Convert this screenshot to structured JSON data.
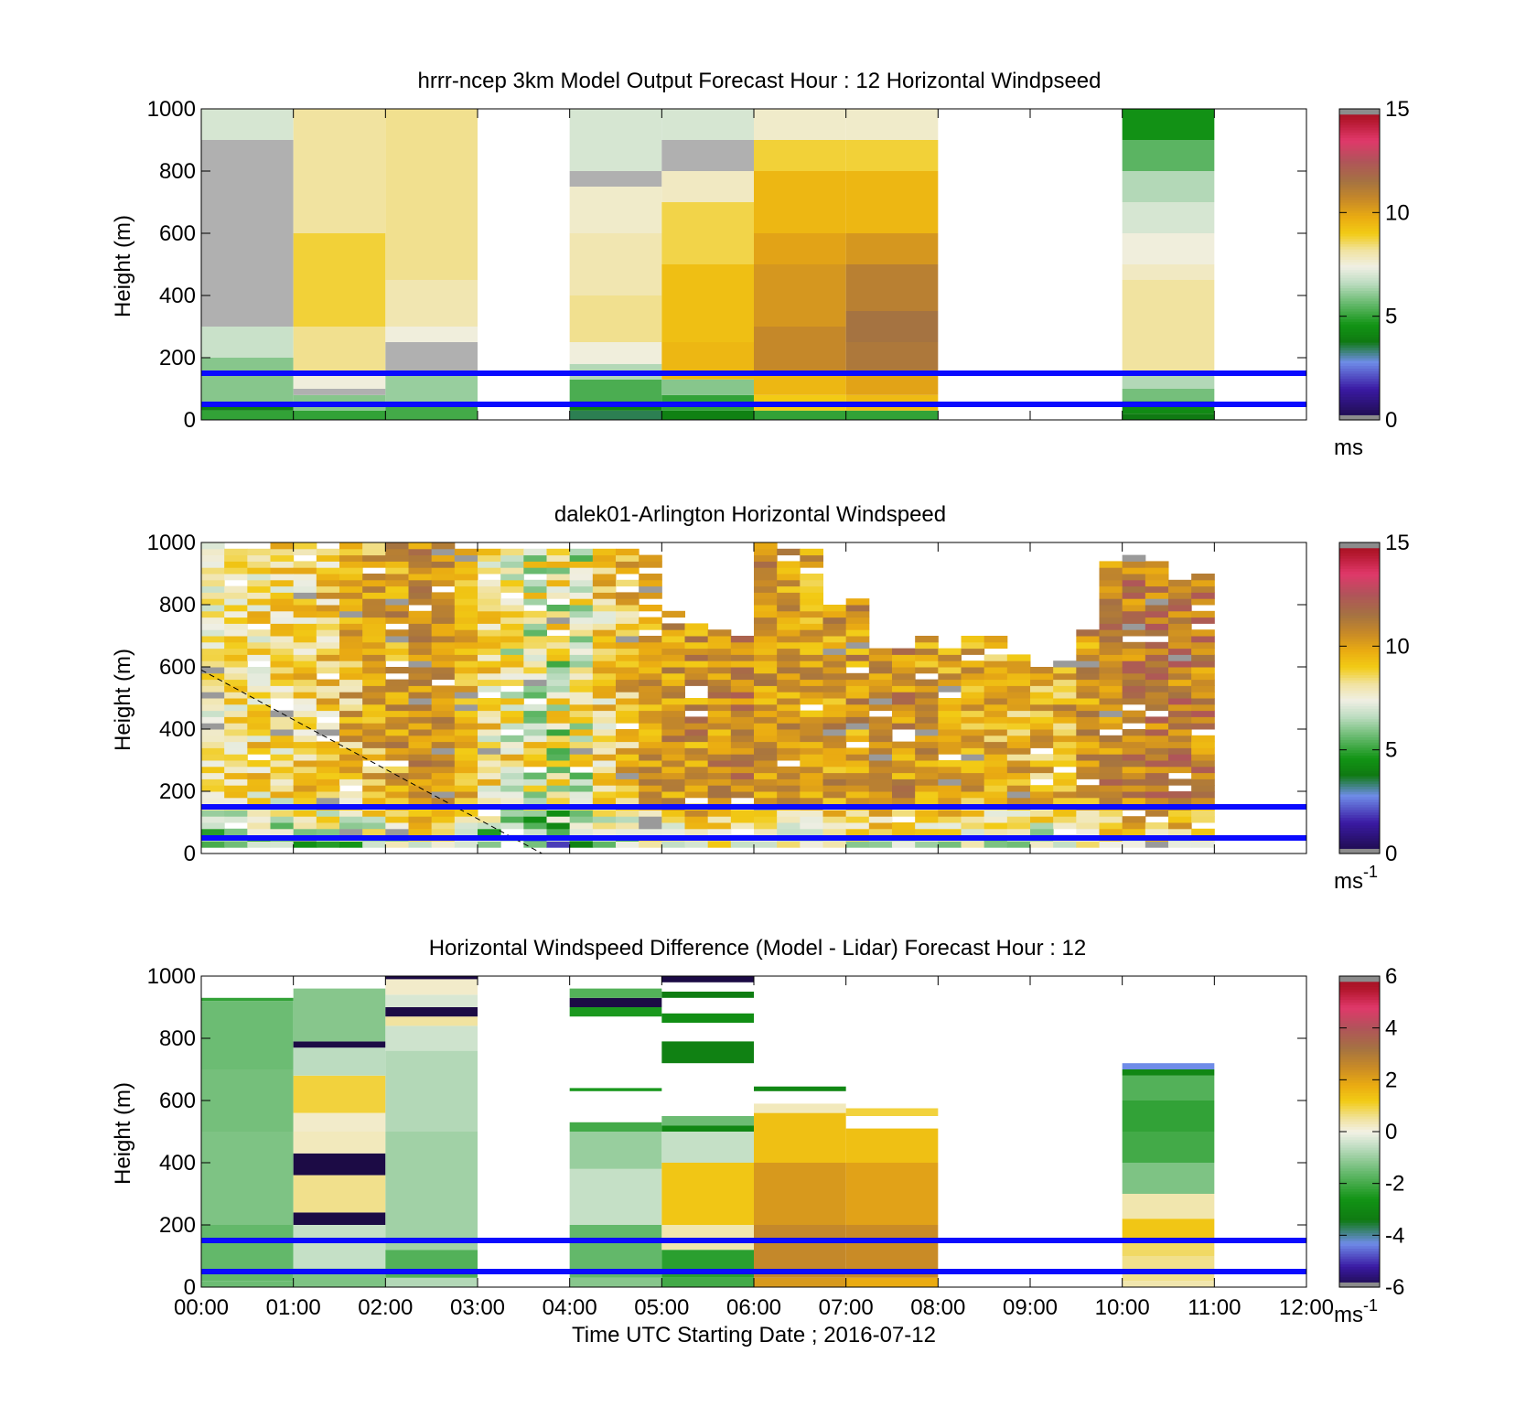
{
  "figure": {
    "x_label": "Time UTC  Starting Date ; 2016-07-12"
  },
  "chart_data": [
    {
      "type": "heatmap",
      "id": "model",
      "title": "hrrr-ncep 3km Model Output   Forecast Hour : 12 Horizontal Windpseed",
      "ylabel": "Height (m)",
      "ylim": [
        0,
        1000
      ],
      "yticks": [
        0,
        200,
        400,
        600,
        800,
        1000
      ],
      "xlim": [
        0,
        12
      ],
      "xtick_labels": [
        "00:00",
        "01:00",
        "02:00",
        "03:00",
        "04:00",
        "05:00",
        "06:00",
        "07:00",
        "08:00",
        "09:00",
        "10:00",
        "11:00",
        "12:00"
      ],
      "show_xtick_labels": false,
      "reference_lines_m": [
        50,
        150
      ],
      "colorbar": {
        "min": 0,
        "max": 15,
        "ticks": [
          0,
          5,
          10,
          15
        ],
        "unit_label": "ms",
        "unit_superscript": ""
      },
      "columns": [
        {
          "t0": 0,
          "t1": 1,
          "cells": [
            [
              0,
              30,
              5
            ],
            [
              30,
              50,
              4
            ],
            [
              50,
              200,
              6
            ],
            [
              200,
              300,
              6.8
            ],
            [
              300,
              900,
              -99
            ],
            [
              900,
              1000,
              7
            ]
          ]
        },
        {
          "t0": 1,
          "t1": 2,
          "cells": [
            [
              0,
              30,
              5
            ],
            [
              30,
              80,
              6
            ],
            [
              80,
              100,
              -99
            ],
            [
              100,
              150,
              7.5
            ],
            [
              150,
              300,
              8.3
            ],
            [
              300,
              600,
              8.8
            ],
            [
              600,
              1000,
              8.2
            ]
          ]
        },
        {
          "t0": 2,
          "t1": 3,
          "cells": [
            [
              0,
              50,
              5.2
            ],
            [
              50,
              150,
              6.2
            ],
            [
              150,
              250,
              -99
            ],
            [
              250,
              300,
              7.5
            ],
            [
              300,
              450,
              8
            ],
            [
              450,
              1000,
              8.3
            ]
          ]
        },
        {
          "t0": 4,
          "t1": 5,
          "cells": [
            [
              0,
              30,
              3.5
            ],
            [
              30,
              60,
              4
            ],
            [
              60,
              130,
              5.3
            ],
            [
              130,
              180,
              6.5
            ],
            [
              180,
              250,
              7.5
            ],
            [
              250,
              400,
              8.3
            ],
            [
              400,
              600,
              8
            ],
            [
              600,
              750,
              7.7
            ],
            [
              750,
              800,
              -99
            ],
            [
              800,
              1000,
              7
            ]
          ]
        },
        {
          "t0": 5,
          "t1": 6,
          "cells": [
            [
              0,
              30,
              4
            ],
            [
              30,
              80,
              5
            ],
            [
              80,
              130,
              6
            ],
            [
              130,
              250,
              9.5
            ],
            [
              250,
              500,
              9.3
            ],
            [
              500,
              700,
              8.7
            ],
            [
              700,
              800,
              7.8
            ],
            [
              800,
              900,
              -99
            ],
            [
              900,
              1000,
              7
            ]
          ]
        },
        {
          "t0": 6,
          "t1": 7,
          "cells": [
            [
              0,
              30,
              5
            ],
            [
              30,
              80,
              9
            ],
            [
              80,
              150,
              9.5
            ],
            [
              150,
              300,
              10.7
            ],
            [
              300,
              500,
              10.3
            ],
            [
              500,
              600,
              10
            ],
            [
              600,
              800,
              9.5
            ],
            [
              800,
              900,
              8.8
            ],
            [
              900,
              1000,
              7.7
            ]
          ]
        },
        {
          "t0": 7,
          "t1": 8,
          "cells": [
            [
              0,
              30,
              5
            ],
            [
              30,
              80,
              9.4
            ],
            [
              80,
              150,
              10
            ],
            [
              150,
              250,
              11.3
            ],
            [
              250,
              350,
              11.5
            ],
            [
              350,
              500,
              11
            ],
            [
              500,
              600,
              10.3
            ],
            [
              600,
              800,
              9.5
            ],
            [
              800,
              900,
              8.8
            ],
            [
              900,
              1000,
              7.7
            ]
          ]
        },
        {
          "t0": 10,
          "t1": 11,
          "cells": [
            [
              0,
              20,
              3.8
            ],
            [
              20,
              60,
              4.3
            ],
            [
              60,
              100,
              5.8
            ],
            [
              100,
              150,
              6.5
            ],
            [
              150,
              450,
              8.2
            ],
            [
              450,
              500,
              7.8
            ],
            [
              500,
              600,
              7.5
            ],
            [
              600,
              700,
              7
            ],
            [
              700,
              800,
              6.5
            ],
            [
              800,
              900,
              5.5
            ],
            [
              900,
              1000,
              4.5
            ]
          ]
        }
      ]
    },
    {
      "type": "heatmap",
      "id": "lidar",
      "title": "dalek01-Arlington  Horizontal Windspeed",
      "ylabel": "Height (m)",
      "ylim": [
        0,
        1000
      ],
      "yticks": [
        0,
        200,
        400,
        600,
        800,
        1000
      ],
      "xlim": [
        0,
        12
      ],
      "xtick_labels": [
        "00:00",
        "01:00",
        "02:00",
        "03:00",
        "04:00",
        "05:00",
        "06:00",
        "07:00",
        "08:00",
        "09:00",
        "10:00",
        "11:00",
        "12:00"
      ],
      "show_xtick_labels": false,
      "reference_lines_m": [
        50,
        150
      ],
      "diagonal_dashed_line": {
        "t": [
          0,
          3.7
        ],
        "h": [
          590,
          0
        ]
      },
      "colorbar": {
        "min": 0,
        "max": 15,
        "ticks": [
          0,
          5,
          10,
          15
        ],
        "unit_label": "ms",
        "unit_superscript": "-1"
      },
      "time_step_h": 0.25,
      "level_count": 50,
      "top_m": [
        1000,
        1000,
        980,
        1000,
        1000,
        980,
        1000,
        1000,
        1000,
        1000,
        1000,
        980,
        980,
        980,
        990,
        990,
        990,
        980,
        980,
        970,
        780,
        740,
        720,
        700,
        1000,
        980,
        980,
        800,
        820,
        660,
        660,
        710,
        660,
        710,
        700,
        640,
        610,
        620,
        730,
        950,
        970,
        950,
        880,
        900
      ],
      "base_speed": [
        8.0,
        8.3,
        8.5,
        8.6,
        8.8,
        9.1,
        9.4,
        9.7,
        10.2,
        10.6,
        10.5,
        9.6,
        8.5,
        8.0,
        7.5,
        7.4,
        7.5,
        8.6,
        9.3,
        10.0,
        10.3,
        10.5,
        10.6,
        10.7,
        10.4,
        10.2,
        10.0,
        10.2,
        10.4,
        10.6,
        10.5,
        10.2,
        10.1,
        9.9,
        9.7,
        9.6,
        9.7,
        9.8,
        10.3,
        10.8,
        11.1,
        11.1,
        11.0,
        10.9
      ],
      "column_variability": [
        1.2,
        1.4,
        1.6,
        1.6,
        1.6,
        1.8,
        1.8,
        1.6,
        1.6,
        1.2,
        1.0,
        1.0,
        1.8,
        2.0,
        2.2,
        2.4,
        2.2,
        1.8,
        1.6,
        1.4,
        1.4,
        1.6,
        1.6,
        1.5,
        1.4,
        1.4,
        1.4,
        1.5,
        1.5,
        1.5,
        1.5,
        1.4,
        1.4,
        1.4,
        1.4,
        1.6,
        1.6,
        1.6,
        1.4,
        1.4,
        1.4,
        1.4,
        1.5,
        1.5
      ]
    },
    {
      "type": "heatmap",
      "id": "difference",
      "title": "Horizontal Windspeed Difference (Model - Lidar) Forecast Hour : 12",
      "ylabel": "Height (m)",
      "ylim": [
        0,
        1000
      ],
      "yticks": [
        0,
        200,
        400,
        600,
        800,
        1000
      ],
      "xlim": [
        0,
        12
      ],
      "xtick_labels": [
        "00:00",
        "01:00",
        "02:00",
        "03:00",
        "04:00",
        "05:00",
        "06:00",
        "07:00",
        "08:00",
        "09:00",
        "10:00",
        "11:00",
        "12:00"
      ],
      "show_xtick_labels": true,
      "reference_lines_m": [
        50,
        150
      ],
      "colorbar": {
        "min": -6,
        "max": 6,
        "ticks": [
          -6,
          -4,
          -2,
          0,
          2,
          4,
          6
        ],
        "unit_label": "ms",
        "unit_superscript": "-1"
      },
      "columns": [
        {
          "t0": 0,
          "t1": 1,
          "cells": [
            [
              0,
              20,
              -1.5
            ],
            [
              20,
              200,
              -1.6
            ],
            [
              200,
              500,
              -1.3
            ],
            [
              500,
              700,
              -1.4
            ],
            [
              700,
              920,
              -1.5
            ],
            [
              920,
              930,
              -2.2
            ]
          ]
        },
        {
          "t0": 1,
          "t1": 2,
          "cells": [
            [
              0,
              60,
              -1.3
            ],
            [
              60,
              200,
              -0.5
            ],
            [
              200,
              240,
              -6.5
            ],
            [
              240,
              360,
              0.6
            ],
            [
              360,
              430,
              -6.5
            ],
            [
              430,
              500,
              0.3
            ],
            [
              500,
              560,
              0.2
            ],
            [
              560,
              680,
              1.0
            ],
            [
              680,
              770,
              -0.6
            ],
            [
              770,
              790,
              -6.5
            ],
            [
              790,
              960,
              -1.2
            ]
          ]
        },
        {
          "t0": 2,
          "t1": 3,
          "cells": [
            [
              0,
              30,
              -0.7
            ],
            [
              30,
              120,
              -1.8
            ],
            [
              120,
              500,
              -0.9
            ],
            [
              500,
              760,
              -0.7
            ],
            [
              760,
              840,
              -0.4
            ],
            [
              840,
              870,
              0.5
            ],
            [
              870,
              900,
              -6.5
            ],
            [
              900,
              940,
              -0.3
            ],
            [
              940,
              990,
              0.2
            ],
            [
              990,
              1000,
              -6.5
            ]
          ]
        },
        {
          "t0": 4,
          "t1": 5,
          "cells": [
            [
              0,
              30,
              -1.2
            ],
            [
              30,
              200,
              -1.6
            ],
            [
              200,
              380,
              -0.5
            ],
            [
              380,
              500,
              -1.0
            ],
            [
              500,
              530,
              -2.0
            ],
            [
              630,
              640,
              -2.5
            ],
            [
              870,
              900,
              -2.5
            ],
            [
              900,
              930,
              -6.5
            ],
            [
              930,
              960,
              -1.8
            ]
          ]
        },
        {
          "t0": 5,
          "t1": 6,
          "cells": [
            [
              0,
              30,
              -2.0
            ],
            [
              30,
              120,
              -2.3
            ],
            [
              120,
              200,
              0.4
            ],
            [
              200,
              400,
              1.3
            ],
            [
              400,
              500,
              -0.5
            ],
            [
              500,
              520,
              -3.0
            ],
            [
              520,
              550,
              -1.5
            ],
            [
              720,
              790,
              -3.2
            ],
            [
              850,
              880,
              -2.8
            ],
            [
              930,
              950,
              -3.3
            ],
            [
              980,
              1000,
              -6.5
            ]
          ]
        },
        {
          "t0": 6,
          "t1": 7,
          "cells": [
            [
              0,
              30,
              2.2
            ],
            [
              30,
              200,
              2.6
            ],
            [
              200,
              400,
              2.2
            ],
            [
              400,
              560,
              1.4
            ],
            [
              560,
              590,
              0.3
            ],
            [
              630,
              645,
              -3.0
            ]
          ]
        },
        {
          "t0": 7,
          "t1": 8,
          "cells": [
            [
              0,
              30,
              1.8
            ],
            [
              30,
              200,
              2.5
            ],
            [
              200,
              400,
              2.0
            ],
            [
              400,
              510,
              1.4
            ],
            [
              550,
              575,
              1.0
            ]
          ]
        },
        {
          "t0": 10,
          "t1": 11,
          "cells": [
            [
              0,
              20,
              0.4
            ],
            [
              20,
              100,
              0.6
            ],
            [
              100,
              150,
              0.8
            ],
            [
              150,
              220,
              1.3
            ],
            [
              220,
              300,
              0.4
            ],
            [
              300,
              400,
              -1.3
            ],
            [
              400,
              500,
              -2.0
            ],
            [
              500,
              600,
              -2.2
            ],
            [
              600,
              680,
              -1.8
            ],
            [
              680,
              700,
              -3.0
            ],
            [
              700,
              720,
              -4.3
            ]
          ]
        }
      ]
    }
  ]
}
